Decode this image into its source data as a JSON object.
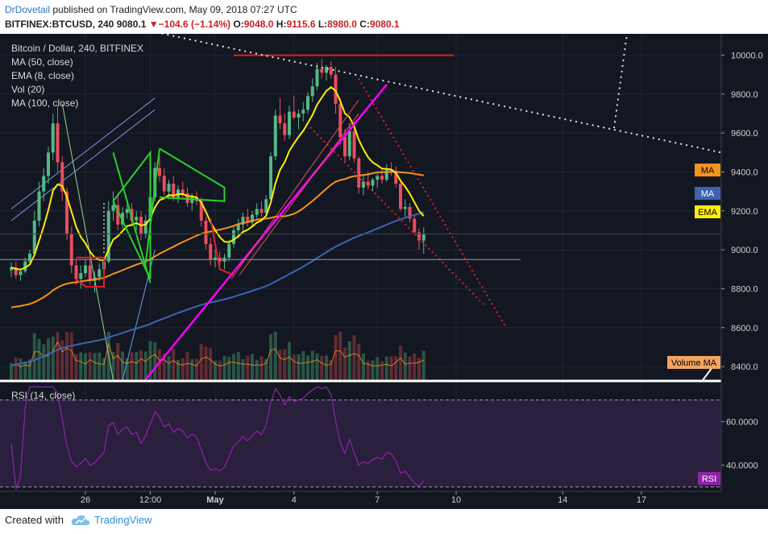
{
  "header": {
    "author": "DrDovetail",
    "published_text": "published on TradingView.com, May 09, 2018 07:27 UTC",
    "symbol": "BITFINEX:BTCUSD, 240",
    "last": "9080.1",
    "change": "−104.6 (−1.14%)",
    "o_label": "O:",
    "o_value": "9048.0",
    "h_label": "H:",
    "h_value": "9115.6",
    "l_label": "L:",
    "l_value": "8980.0",
    "c_label": "C:",
    "c_value": "9080.1"
  },
  "legend": {
    "title": "Bitcoin / Dollar, 240, BITFINEX",
    "ma50": "MA (50, close)",
    "ema8": "EMA (8, close)",
    "vol": "Vol (20)",
    "ma100": "MA (100, close)"
  },
  "price_axis": {
    "labels": [
      "10000.0",
      "9800.0",
      "9600.0",
      "9400.0",
      "9200.0",
      "9000.0",
      "8800.0",
      "8600.0",
      "8400.0"
    ],
    "badges": [
      {
        "label": "MA",
        "value": 9410,
        "color": "#f7931a",
        "text_color": "#000000"
      },
      {
        "label": "MA",
        "value": 9290,
        "color": "#3c64b0",
        "text_color": "#ffffff"
      },
      {
        "label": "EMA",
        "value": 9195,
        "color": "#ffee00",
        "text_color": "#000000"
      }
    ],
    "volume_badge": "Volume MA",
    "volume_badge_color": "#f4a460"
  },
  "rsi": {
    "title": "RSI (14, close)",
    "labels": [
      "60.0000",
      "40.0000"
    ],
    "badge": "RSI",
    "badge_color": "#8e24aa",
    "upper": 70,
    "lower": 30
  },
  "time_axis": {
    "labels": [
      "26",
      "12:00",
      "May",
      "4",
      "7",
      "10",
      "14",
      "17"
    ]
  },
  "footer": {
    "created_with": "Created with",
    "brand": "TradingView"
  },
  "colors": {
    "background": "#131722",
    "up": "#53b987",
    "down": "#eb4d5c",
    "ma50": "#f7931a",
    "ema8": "#ffee00",
    "ma100": "#3c64b0",
    "rsi_line": "#8e24aa",
    "rsi_band": "#2a1f3d",
    "magenta": "#ff00ff",
    "red_line": "#e0202a",
    "green_line": "#2bd12b",
    "light_blue": "#6f9fe0",
    "white_dotted": "#e6e6e6"
  },
  "chart_data": {
    "type": "candlestick",
    "symbol": "BITFINEX:BTCUSD",
    "interval": "240",
    "ylim": [
      8330,
      10110
    ],
    "rsi_ylim": [
      28,
      78
    ],
    "rsi_levels": [
      70,
      30
    ],
    "x_ticks": [
      {
        "label": "26",
        "index": 16
      },
      {
        "label": "12:00",
        "index": 30
      },
      {
        "label": "May",
        "index": 44
      },
      {
        "label": "4",
        "index": 61
      },
      {
        "label": "7",
        "index": 79
      },
      {
        "label": "10",
        "index": 96
      },
      {
        "label": "14",
        "index": 119
      },
      {
        "label": "17",
        "index": 136
      }
    ],
    "candles": [
      [
        8895,
        8935,
        8860,
        8910
      ],
      [
        8910,
        8940,
        8850,
        8870
      ],
      [
        8870,
        8900,
        8840,
        8890
      ],
      [
        8890,
        8960,
        8880,
        8940
      ],
      [
        8940,
        9000,
        8930,
        8980
      ],
      [
        8980,
        9200,
        8970,
        9150
      ],
      [
        9150,
        9350,
        9120,
        9300
      ],
      [
        9300,
        9420,
        9250,
        9380
      ],
      [
        9380,
        9530,
        9340,
        9500
      ],
      [
        9500,
        9700,
        9460,
        9650
      ],
      [
        9650,
        9740,
        9400,
        9450
      ],
      [
        9450,
        9480,
        9250,
        9300
      ],
      [
        9300,
        9320,
        9050,
        9080
      ],
      [
        9080,
        9120,
        8880,
        8920
      ],
      [
        8920,
        8950,
        8820,
        8850
      ],
      [
        8850,
        8920,
        8800,
        8880
      ],
      [
        8880,
        8950,
        8860,
        8920
      ],
      [
        8920,
        8960,
        8820,
        8840
      ],
      [
        8840,
        8890,
        8780,
        8860
      ],
      [
        8860,
        8930,
        8840,
        8900
      ],
      [
        8900,
        8960,
        8870,
        8940
      ],
      [
        8940,
        9250,
        8930,
        9200
      ],
      [
        9200,
        9300,
        9150,
        9230
      ],
      [
        9230,
        9290,
        9100,
        9130
      ],
      [
        9130,
        9220,
        9110,
        9190
      ],
      [
        9190,
        9260,
        9160,
        9210
      ],
      [
        9210,
        9240,
        9120,
        9150
      ],
      [
        9150,
        9200,
        9100,
        9170
      ],
      [
        9170,
        9200,
        9050,
        9080
      ],
      [
        9080,
        9180,
        9060,
        9150
      ],
      [
        9150,
        9300,
        9130,
        9270
      ],
      [
        9270,
        9450,
        9250,
        9420
      ],
      [
        9420,
        9480,
        9350,
        9380
      ],
      [
        9380,
        9420,
        9280,
        9300
      ],
      [
        9300,
        9360,
        9260,
        9340
      ],
      [
        9340,
        9380,
        9250,
        9270
      ],
      [
        9270,
        9330,
        9240,
        9310
      ],
      [
        9310,
        9350,
        9270,
        9290
      ],
      [
        9290,
        9320,
        9220,
        9240
      ],
      [
        9240,
        9290,
        9200,
        9270
      ],
      [
        9270,
        9300,
        9230,
        9250
      ],
      [
        9250,
        9270,
        9120,
        9150
      ],
      [
        9150,
        9170,
        9000,
        9030
      ],
      [
        9030,
        9060,
        8920,
        8950
      ],
      [
        8950,
        9000,
        8910,
        8960
      ],
      [
        8960,
        8990,
        8920,
        8940
      ],
      [
        8940,
        8980,
        8900,
        8960
      ],
      [
        8960,
        9050,
        8940,
        9030
      ],
      [
        9030,
        9120,
        9010,
        9100
      ],
      [
        9100,
        9160,
        9060,
        9130
      ],
      [
        9130,
        9190,
        9100,
        9170
      ],
      [
        9170,
        9210,
        9120,
        9140
      ],
      [
        9140,
        9200,
        9120,
        9180
      ],
      [
        9180,
        9240,
        9160,
        9210
      ],
      [
        9210,
        9250,
        9170,
        9190
      ],
      [
        9190,
        9280,
        9180,
        9260
      ],
      [
        9260,
        9500,
        9250,
        9480
      ],
      [
        9480,
        9720,
        9460,
        9690
      ],
      [
        9690,
        9780,
        9620,
        9650
      ],
      [
        9650,
        9700,
        9560,
        9590
      ],
      [
        9590,
        9740,
        9570,
        9710
      ],
      [
        9710,
        9790,
        9670,
        9680
      ],
      [
        9680,
        9720,
        9620,
        9700
      ],
      [
        9700,
        9760,
        9660,
        9720
      ],
      [
        9720,
        9810,
        9700,
        9790
      ],
      [
        9790,
        9880,
        9760,
        9840
      ],
      [
        9840,
        9960,
        9820,
        9930
      ],
      [
        9930,
        9980,
        9880,
        9910
      ],
      [
        9910,
        9950,
        9870,
        9940
      ],
      [
        9940,
        9970,
        9880,
        9900
      ],
      [
        9900,
        9940,
        9700,
        9750
      ],
      [
        9750,
        9780,
        9540,
        9580
      ],
      [
        9580,
        9620,
        9450,
        9480
      ],
      [
        9480,
        9650,
        9460,
        9610
      ],
      [
        9610,
        9660,
        9450,
        9470
      ],
      [
        9470,
        9480,
        9290,
        9320
      ],
      [
        9320,
        9380,
        9280,
        9350
      ],
      [
        9350,
        9400,
        9310,
        9330
      ],
      [
        9330,
        9370,
        9300,
        9360
      ],
      [
        9360,
        9390,
        9320,
        9380
      ],
      [
        9380,
        9420,
        9340,
        9360
      ],
      [
        9360,
        9440,
        9350,
        9410
      ],
      [
        9410,
        9450,
        9380,
        9400
      ],
      [
        9400,
        9430,
        9320,
        9340
      ],
      [
        9340,
        9360,
        9200,
        9210
      ],
      [
        9210,
        9260,
        9170,
        9220
      ],
      [
        9220,
        9240,
        9140,
        9160
      ],
      [
        9160,
        9180,
        9080,
        9090
      ],
      [
        9090,
        9110,
        9000,
        9048
      ],
      [
        9048,
        9116,
        8980,
        9080
      ]
    ],
    "series": [
      {
        "name": "MA (50, close)"
      },
      {
        "name": "EMA (8, close)"
      },
      {
        "name": "Vol (20)"
      },
      {
        "name": "MA (100, close)"
      },
      {
        "name": "RSI (14, close)"
      }
    ]
  }
}
